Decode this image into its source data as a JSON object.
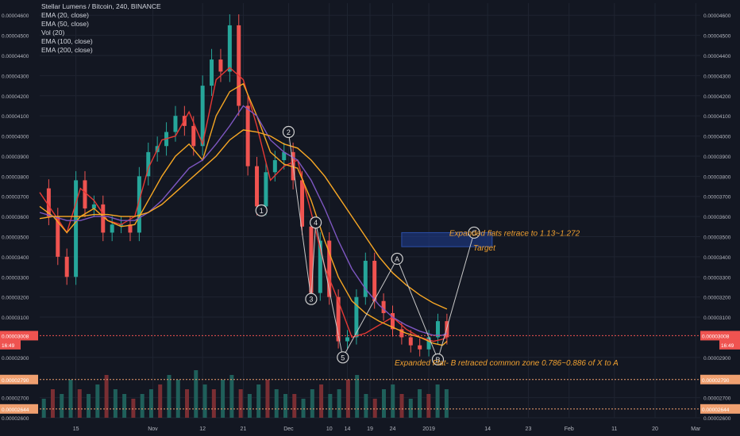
{
  "colors": {
    "background": "#131722",
    "grid": "#1f2431",
    "axis_text": "#b2b5be",
    "candle_up": "#26a69a",
    "candle_down": "#ef5350",
    "vol_up": "#1f5f5a",
    "vol_down": "#7a2e33",
    "ema20": "#e53935",
    "ema50": "#f5a623",
    "ema100": "#7e57c2",
    "ema200": "#f9a825",
    "wave_line": "#c8c8c8",
    "annotation": "#f0a030",
    "target_box": "#1e3a8a",
    "price_marker": "#f0a070",
    "current_price_marker": "#ef5350"
  },
  "legend": {
    "title": "Stellar Lumens / Bitcoin, 240, BINANCE",
    "items": [
      "EMA (20, close)",
      "EMA (50, close)",
      "Vol (20)",
      "EMA (100, close)",
      "EMA (200, close)"
    ]
  },
  "price_markers": {
    "current_price": "0.00003008",
    "current_time": "16:49",
    "level_a": "0.00002790",
    "level_b": "0.00002644"
  },
  "annotations": {
    "target_text": "Expanded flats retrace to 1.13~1.272",
    "target_label": "Target",
    "b_text": "Expanded Flat- B retraced common zone 0.786~0.886 of X to A"
  },
  "chart_data": {
    "type": "line",
    "title": "Stellar Lumens / Bitcoin, 240, BINANCE",
    "xlabel": "",
    "ylabel": "",
    "y_axis_ticks": [
      "0.00004600",
      "0.00004500",
      "0.00004400",
      "0.00004300",
      "0.00004200",
      "0.00004100",
      "0.00004000",
      "0.00003900",
      "0.00003800",
      "0.00003700",
      "0.00003600",
      "0.00003500",
      "0.00003400",
      "0.00003300",
      "0.00003200",
      "0.00003100",
      "0.00002900",
      "0.00002700",
      "0.00002600"
    ],
    "ylim": [
      2.6e-05,
      4.66e-05
    ],
    "x_axis_ticks": [
      {
        "label": "15",
        "day": 15
      },
      {
        "label": "Nov",
        "day": 32
      },
      {
        "label": "12",
        "day": 43
      },
      {
        "label": "21",
        "day": 52
      },
      {
        "label": "Dec",
        "day": 62
      },
      {
        "label": "10",
        "day": 71
      },
      {
        "label": "14",
        "day": 75
      },
      {
        "label": "19",
        "day": 80
      },
      {
        "label": "24",
        "day": 85
      },
      {
        "label": "2019",
        "day": 93
      },
      {
        "label": "14",
        "day": 106
      },
      {
        "label": "23",
        "day": 115
      },
      {
        "label": "Feb",
        "day": 124
      },
      {
        "label": "11",
        "day": 134
      },
      {
        "label": "20",
        "day": 143
      },
      {
        "label": "Mar",
        "day": 152
      }
    ],
    "xlim": [
      7,
      153
    ],
    "series": [
      {
        "name": "EMA (20, close)",
        "x": [
          7,
          10,
          13,
          16,
          19,
          22,
          25,
          28,
          31,
          34,
          37,
          40,
          43,
          46,
          49,
          52,
          55,
          58,
          61,
          64,
          67,
          70,
          73,
          76,
          79,
          82,
          85,
          88,
          91,
          94,
          96,
          97
        ],
        "values": [
          3.72e-05,
          3.62e-05,
          3.52e-05,
          3.74e-05,
          3.68e-05,
          3.58e-05,
          3.56e-05,
          3.6e-05,
          3.84e-05,
          3.98e-05,
          4e-05,
          4.12e-05,
          3.96e-05,
          4.28e-05,
          4.34e-05,
          4.28e-05,
          4.05e-05,
          3.78e-05,
          3.85e-05,
          3.88e-05,
          3.62e-05,
          3.35e-05,
          3.18e-05,
          3e-05,
          3.02e-05,
          3.06e-05,
          3.1e-05,
          3.04e-05,
          3e-05,
          2.98e-05,
          2.99e-05,
          3e-05
        ]
      },
      {
        "name": "EMA (50, close)",
        "x": [
          7,
          10,
          13,
          16,
          19,
          22,
          25,
          28,
          31,
          34,
          37,
          40,
          43,
          46,
          49,
          52,
          55,
          58,
          61,
          64,
          67,
          70,
          73,
          76,
          79,
          82,
          85,
          88,
          91,
          94,
          96,
          97
        ],
        "values": [
          3.65e-05,
          3.6e-05,
          3.52e-05,
          3.6e-05,
          3.64e-05,
          3.58e-05,
          3.55e-05,
          3.56e-05,
          3.68e-05,
          3.8e-05,
          3.9e-05,
          3.96e-05,
          3.88e-05,
          4.1e-05,
          4.22e-05,
          4.26e-05,
          4.1e-05,
          3.92e-05,
          3.86e-05,
          3.84e-05,
          3.68e-05,
          3.48e-05,
          3.3e-05,
          3.18e-05,
          3.12e-05,
          3.08e-05,
          3.05e-05,
          3.02e-05,
          3e-05,
          2.97e-05,
          2.96e-05,
          2.98e-05
        ]
      },
      {
        "name": "EMA (100, close)",
        "x": [
          7,
          10,
          13,
          16,
          19,
          22,
          25,
          28,
          31,
          34,
          37,
          40,
          43,
          46,
          49,
          52,
          55,
          58,
          61,
          64,
          67,
          70,
          73,
          76,
          79,
          82,
          85,
          88,
          91,
          94,
          96,
          97
        ],
        "values": [
          3.62e-05,
          3.6e-05,
          3.58e-05,
          3.58e-05,
          3.6e-05,
          3.6e-05,
          3.58e-05,
          3.58e-05,
          3.62e-05,
          3.68e-05,
          3.76e-05,
          3.84e-05,
          3.88e-05,
          3.96e-05,
          4.05e-05,
          4.15e-05,
          4.1e-05,
          3.98e-05,
          3.92e-05,
          3.88e-05,
          3.78e-05,
          3.64e-05,
          3.48e-05,
          3.34e-05,
          3.24e-05,
          3.16e-05,
          3.1e-05,
          3.06e-05,
          3.03e-05,
          3.01e-05,
          3.01e-05,
          3.02e-05
        ]
      },
      {
        "name": "EMA (200, close)",
        "x": [
          7,
          10,
          13,
          16,
          19,
          22,
          25,
          28,
          31,
          34,
          37,
          40,
          43,
          46,
          49,
          52,
          55,
          58,
          61,
          64,
          67,
          70,
          73,
          76,
          79,
          82,
          85,
          88,
          91,
          94,
          96,
          97
        ],
        "values": [
          3.59e-05,
          3.6e-05,
          3.6e-05,
          3.6e-05,
          3.61e-05,
          3.61e-05,
          3.6e-05,
          3.6e-05,
          3.62e-05,
          3.66e-05,
          3.72e-05,
          3.78e-05,
          3.84e-05,
          3.9e-05,
          3.98e-05,
          4.03e-05,
          4.02e-05,
          4e-05,
          3.96e-05,
          3.94e-05,
          3.88e-05,
          3.8e-05,
          3.7e-05,
          3.6e-05,
          3.5e-05,
          3.4e-05,
          3.32e-05,
          3.26e-05,
          3.21e-05,
          3.17e-05,
          3.15e-05,
          3.14e-05
        ]
      },
      {
        "name": "Price",
        "x": [
          7,
          9,
          11,
          13,
          15,
          17,
          19,
          21,
          23,
          25,
          27,
          29,
          31,
          33,
          35,
          37,
          39,
          41,
          43,
          45,
          47,
          49,
          51,
          53,
          55,
          57,
          59,
          61,
          63,
          65,
          67,
          69,
          71,
          73,
          75,
          77,
          79,
          81,
          83,
          85,
          87,
          89,
          91,
          93,
          95,
          97
        ],
        "values": [
          3.74e-05,
          3.6e-05,
          3.4e-05,
          3.3e-05,
          3.78e-05,
          3.64e-05,
          3.66e-05,
          3.52e-05,
          3.56e-05,
          3.56e-05,
          3.52e-05,
          3.8e-05,
          3.92e-05,
          3.95e-05,
          4.02e-05,
          4.1e-05,
          4.05e-05,
          3.95e-05,
          4.25e-05,
          4.38e-05,
          4.32e-05,
          4.55e-05,
          4.15e-05,
          3.85e-05,
          3.65e-05,
          3.82e-05,
          3.88e-05,
          3.92e-05,
          3.78e-05,
          3.55e-05,
          3.22e-05,
          3.48e-05,
          3.2e-05,
          2.98e-05,
          3e-05,
          3.2e-05,
          3.38e-05,
          3.18e-05,
          3.12e-05,
          3.04e-05,
          3e-05,
          2.96e-05,
          2.94e-05,
          3e-05,
          3.08e-05,
          3e-05
        ]
      }
    ],
    "waves": [
      {
        "label": "1",
        "day": 56,
        "price": 3.63e-05
      },
      {
        "label": "2",
        "day": 62,
        "price": 4.02e-05
      },
      {
        "label": "3",
        "day": 67,
        "price": 3.19e-05
      },
      {
        "label": "4",
        "day": 68,
        "price": 3.57e-05
      },
      {
        "label": "5",
        "day": 74,
        "price": 2.9e-05
      },
      {
        "label": "A",
        "day": 86,
        "price": 3.39e-05
      },
      {
        "label": "B",
        "day": 95,
        "price": 2.89e-05
      },
      {
        "label": "C",
        "day": 103,
        "price": 3.52e-05
      }
    ],
    "target_zone": {
      "day_from": 87,
      "day_to": 107,
      "price_from": 3.45e-05,
      "price_to": 3.52e-05
    },
    "volume": [
      0.4,
      0.6,
      0.5,
      0.8,
      0.6,
      0.5,
      0.7,
      0.9,
      0.6,
      0.5,
      0.4,
      0.5,
      0.6,
      0.7,
      0.9,
      0.8,
      0.6,
      1.0,
      0.7,
      0.6,
      0.8,
      0.9,
      0.6,
      0.5,
      0.7,
      0.8,
      0.6,
      0.5,
      0.5,
      0.4,
      0.6,
      0.7,
      0.5,
      0.6,
      0.8,
      0.9,
      0.5,
      0.4,
      0.6,
      0.7,
      0.5,
      0.4,
      0.6,
      0.5,
      0.7,
      0.6
    ],
    "legend": [
      "EMA (20, close)",
      "EMA (50, close)",
      "Vol (20)",
      "EMA (100, close)",
      "EMA (200, close)"
    ]
  }
}
